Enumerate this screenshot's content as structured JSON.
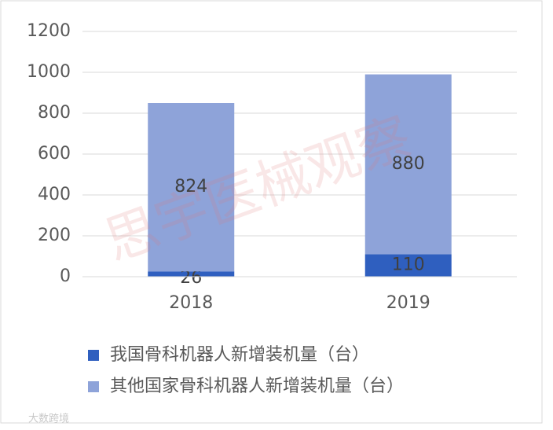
{
  "chart_data": {
    "type": "stacked_bar",
    "categories": [
      "2018",
      "2019"
    ],
    "series": [
      {
        "name": "我国骨科机器人新增装机量（台）",
        "color": "#2f5fbf",
        "values": [
          26,
          110
        ]
      },
      {
        "name": "其他国家骨科机器人新增装机量（台）",
        "color": "#8ea3d9",
        "values": [
          824,
          880
        ]
      }
    ],
    "ylim": [
      0,
      1200
    ],
    "yticks": [
      0,
      200,
      400,
      600,
      800,
      1000,
      1200
    ],
    "grid": true,
    "legend": "bottom",
    "watermark": "思宇医械观察",
    "corner_mark": "大数跨境"
  }
}
